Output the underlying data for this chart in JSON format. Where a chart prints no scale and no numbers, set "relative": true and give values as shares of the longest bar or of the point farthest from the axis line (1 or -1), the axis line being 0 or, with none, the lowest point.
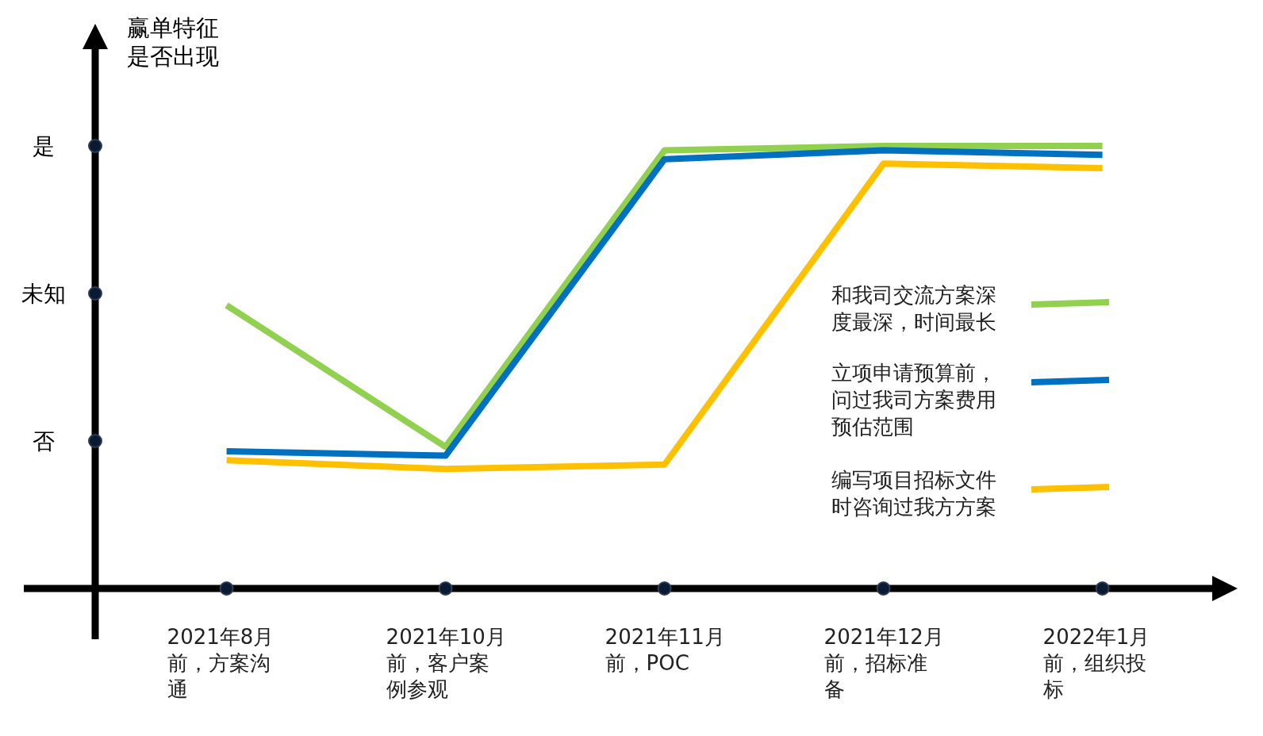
{
  "chart_data": {
    "type": "line",
    "relative": true,
    "ylabel": "赢单特征是否出现",
    "categories": [
      "2021年8月前，方案沟通",
      "2021年10月前，客户案例参观",
      "2021年11月前，POC",
      "2021年12月前，招标准备",
      "2022年1月前，组织投标"
    ],
    "y_categories": [
      "是",
      "未知",
      "否"
    ],
    "series": [
      {
        "name": "和我司交流方案深度最深，时间最长",
        "color": "#92d050",
        "values": [
          0.64,
          0.32,
          0.99,
          1.0,
          1.0
        ]
      },
      {
        "name": "立项申请预算前，问过我司方案费用预估范围",
        "color": "#0070c0",
        "values": [
          0.31,
          0.3,
          0.97,
          0.99,
          0.98
        ]
      },
      {
        "name": "编写项目招标文件时咨询过我方方案",
        "color": "#ffc000",
        "values": [
          0.29,
          0.27,
          0.28,
          0.96,
          0.95
        ]
      }
    ],
    "legend": "right",
    "grid": false
  }
}
